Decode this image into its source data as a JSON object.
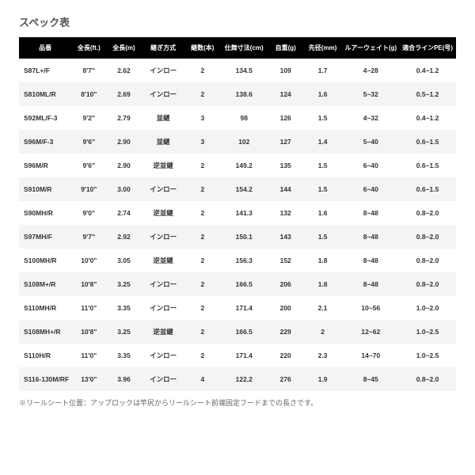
{
  "title": "スペック表",
  "columns": [
    "品番",
    "全長(ft.)",
    "全長(m)",
    "継ぎ方式",
    "継数(本)",
    "仕舞寸法(cm)",
    "自重(g)",
    "先径(mm)",
    "ルアーウェイト(g)",
    "適合ラインPE(号)"
  ],
  "rows": [
    [
      "S87L+/F",
      "8'7\"",
      "2.62",
      "インロー",
      "2",
      "134.5",
      "109",
      "1.7",
      "4~28",
      "0.4~1.2"
    ],
    [
      "S810ML/R",
      "8'10\"",
      "2.69",
      "インロー",
      "2",
      "138.6",
      "124",
      "1.6",
      "5~32",
      "0.5~1.2"
    ],
    [
      "S92ML/F-3",
      "9'2\"",
      "2.79",
      "並継",
      "3",
      "98",
      "126",
      "1.5",
      "4~32",
      "0.4~1.2"
    ],
    [
      "S96M/F-3",
      "9'6\"",
      "2.90",
      "並継",
      "3",
      "102",
      "127",
      "1.4",
      "5~40",
      "0.6~1.5"
    ],
    [
      "S96M/R",
      "9'6\"",
      "2.90",
      "逆並継",
      "2",
      "149.2",
      "135",
      "1.5",
      "6~40",
      "0.6~1.5"
    ],
    [
      "S910M/R",
      "9'10\"",
      "3.00",
      "インロー",
      "2",
      "154.2",
      "144",
      "1.5",
      "6~40",
      "0.6~1.5"
    ],
    [
      "S90MH/R",
      "9'0\"",
      "2.74",
      "逆並継",
      "2",
      "141.3",
      "132",
      "1.6",
      "8~48",
      "0.8~2.0"
    ],
    [
      "S97MH/F",
      "9'7\"",
      "2.92",
      "インロー",
      "2",
      "150.1",
      "143",
      "1.5",
      "8~48",
      "0.8~2.0"
    ],
    [
      "S100MH/R",
      "10'0\"",
      "3.05",
      "逆並継",
      "2",
      "156.3",
      "152",
      "1.8",
      "8~48",
      "0.8~2.0"
    ],
    [
      "S108M+/R",
      "10'8\"",
      "3.25",
      "インロー",
      "2",
      "166.5",
      "206",
      "1.8",
      "8~48",
      "0.8~2.0"
    ],
    [
      "S110MH/R",
      "11'0\"",
      "3.35",
      "インロー",
      "2",
      "171.4",
      "200",
      "2.1",
      "10~56",
      "1.0~2.0"
    ],
    [
      "S108MH+/R",
      "10'8\"",
      "3.25",
      "逆並継",
      "2",
      "166.5",
      "229",
      "2",
      "12~62",
      "1.0~2.5"
    ],
    [
      "S110H/R",
      "11'0\"",
      "3.35",
      "インロー",
      "2",
      "171.4",
      "220",
      "2.3",
      "14~70",
      "1.0~2.5"
    ],
    [
      "S116-130M/RF",
      "13'0\"",
      "3.96",
      "インロー",
      "4",
      "122.2",
      "276",
      "1.9",
      "8~45",
      "0.8~2.0"
    ]
  ],
  "footnote": "※リールシート位置：アップロックは竿尻からリールシート前端固定フードまでの長さです。"
}
